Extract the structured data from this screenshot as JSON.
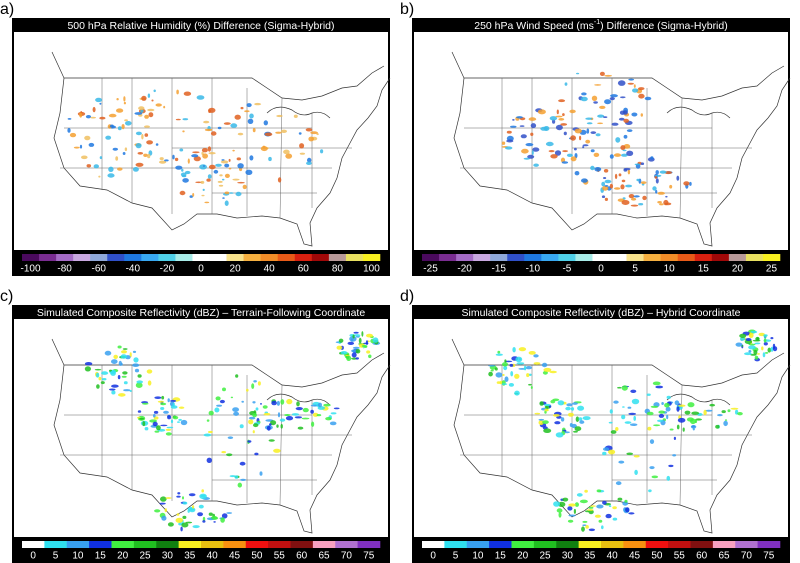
{
  "panels": [
    {
      "label": "a)",
      "title": [
        {
          "text": "500 hPa Relative Humidity (%) Difference (Sigma-Hybrid)"
        }
      ],
      "colorbar": {
        "ticks": [
          -100,
          -80,
          -60,
          -40,
          -20,
          0,
          20,
          40,
          60,
          80,
          100
        ],
        "colors": [
          "#4b0a5e",
          "#7a2d91",
          "#a56cc6",
          "#c9a8e0",
          "#8fa8d8",
          "#3050c8",
          "#1f78e0",
          "#38a8f0",
          "#4fd0e8",
          "#a8ece8",
          "#ffffff",
          "#ffffff",
          "#f8e28c",
          "#f5b040",
          "#f08c28",
          "#e85a18",
          "#d82010",
          "#a00808",
          "#b89a9a",
          "#e8e060",
          "#f8f020"
        ],
        "blob_colors": [
          "#f5a030",
          "#f0c060",
          "#38b8e8",
          "#1f78e0",
          "#e06020"
        ]
      }
    },
    {
      "label": "b)",
      "title": [
        {
          "text": "250 hPa Wind Speed (ms"
        },
        {
          "text": "-1",
          "sup": true
        },
        {
          "text": ") Difference (Sigma-Hybrid)"
        }
      ],
      "colorbar": {
        "ticks": [
          -25,
          -20,
          -15,
          -10,
          -5,
          0,
          5,
          10,
          15,
          20,
          25
        ],
        "colors": [
          "#4b0a5e",
          "#7a2d91",
          "#a56cc6",
          "#c9a8e0",
          "#8fa8d8",
          "#3050c8",
          "#1f78e0",
          "#38a8f0",
          "#4fd0e8",
          "#a8ece8",
          "#ffffff",
          "#ffffff",
          "#f8e28c",
          "#f5b040",
          "#f08c28",
          "#e85a18",
          "#d82010",
          "#a00808",
          "#b89a9a",
          "#e8e060",
          "#f8f020"
        ],
        "blob_colors": [
          "#f5a030",
          "#38b8e8",
          "#1f78e0",
          "#e06020",
          "#3050c8"
        ]
      }
    },
    {
      "label": "c)",
      "title": [
        {
          "text": "Simulated Composite Reflectivity (dBZ) – Terrain-Following Coordinate"
        }
      ],
      "colorbar": {
        "ticks": [
          0,
          5,
          10,
          15,
          20,
          25,
          30,
          35,
          40,
          45,
          50,
          55,
          60,
          65,
          70,
          75
        ],
        "colors": [
          "#ffffff",
          "#30e0f0",
          "#38a0f0",
          "#1030e0",
          "#40f040",
          "#20c020",
          "#108010",
          "#f8f020",
          "#e8c010",
          "#f89010",
          "#f01010",
          "#c01010",
          "#801010",
          "#f8a0c0",
          "#b070d0",
          "#8030c0"
        ],
        "blob_colors": [
          "#38a0f0",
          "#20c020",
          "#40f040",
          "#1030e0",
          "#f8f020",
          "#30e0f0"
        ]
      }
    },
    {
      "label": "d)",
      "title": [
        {
          "text": "Simulated Composite Reflectivity (dBZ) – Hybrid Coordinate"
        }
      ],
      "colorbar": {
        "ticks": [
          0,
          5,
          10,
          15,
          20,
          25,
          30,
          35,
          40,
          45,
          50,
          55,
          60,
          65,
          70,
          75
        ],
        "colors": [
          "#ffffff",
          "#30e0f0",
          "#38a0f0",
          "#1030e0",
          "#40f040",
          "#20c020",
          "#108010",
          "#f8f020",
          "#e8c010",
          "#f89010",
          "#f01010",
          "#c01010",
          "#801010",
          "#f8a0c0",
          "#b070d0",
          "#8030c0"
        ],
        "blob_colors": [
          "#38a0f0",
          "#20c020",
          "#40f040",
          "#1030e0",
          "#f8f020",
          "#30e0f0"
        ]
      }
    }
  ]
}
